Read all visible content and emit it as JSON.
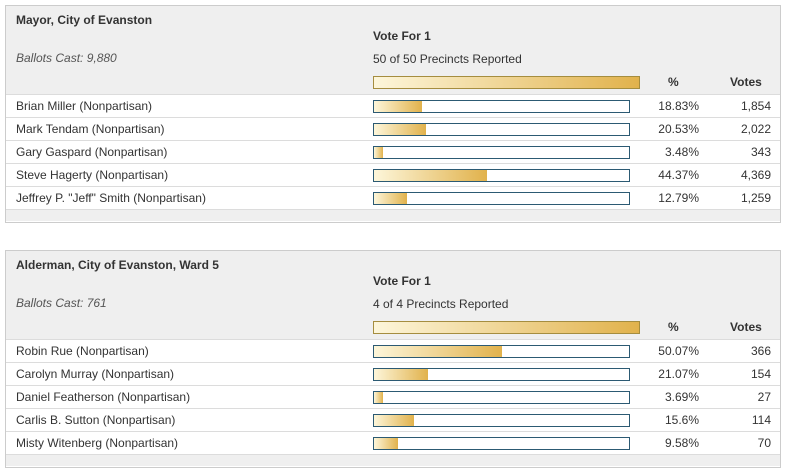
{
  "races": [
    {
      "title": "Mayor, City of Evanston",
      "ballots_cast": "Ballots Cast: 9,880",
      "vote_for": "Vote For 1",
      "precincts": "50 of 50 Precincts Reported",
      "pct_header": "%",
      "votes_header": "Votes",
      "candidates": [
        {
          "name": "Brian Miller (Nonpartisan)",
          "pct": "18.83%",
          "votes": "1,854",
          "share": 0.1883
        },
        {
          "name": "Mark Tendam (Nonpartisan)",
          "pct": "20.53%",
          "votes": "2,022",
          "share": 0.2053
        },
        {
          "name": "Gary Gaspard (Nonpartisan)",
          "pct": "3.48%",
          "votes": "343",
          "share": 0.0348
        },
        {
          "name": "Steve Hagerty (Nonpartisan)",
          "pct": "44.37%",
          "votes": "4,369",
          "share": 0.4437
        },
        {
          "name": "Jeffrey P. \"Jeff\" Smith (Nonpartisan)",
          "pct": "12.79%",
          "votes": "1,259",
          "share": 0.1279
        }
      ]
    },
    {
      "title": "Alderman, City of Evanston, Ward 5",
      "ballots_cast": "Ballots Cast: 761",
      "vote_for": "Vote For 1",
      "precincts": "4 of 4 Precincts Reported",
      "pct_header": "%",
      "votes_header": "Votes",
      "candidates": [
        {
          "name": "Robin Rue (Nonpartisan)",
          "pct": "50.07%",
          "votes": "366",
          "share": 0.5007
        },
        {
          "name": "Carolyn Murray (Nonpartisan)",
          "pct": "21.07%",
          "votes": "154",
          "share": 0.2107
        },
        {
          "name": "Daniel Featherson (Nonpartisan)",
          "pct": "3.69%",
          "votes": "27",
          "share": 0.0369
        },
        {
          "name": "Carlis B. Sutton (Nonpartisan)",
          "pct": "15.6%",
          "votes": "114",
          "share": 0.156
        },
        {
          "name": "Misty Witenberg (Nonpartisan)",
          "pct": "9.58%",
          "votes": "70",
          "share": 0.0958
        }
      ]
    }
  ],
  "colors": {
    "bar_gradient_start": "#fdf6da",
    "bar_gradient_end": "#e1b24c",
    "bar_border": "#2c5a73",
    "header_background": "#efefef"
  }
}
